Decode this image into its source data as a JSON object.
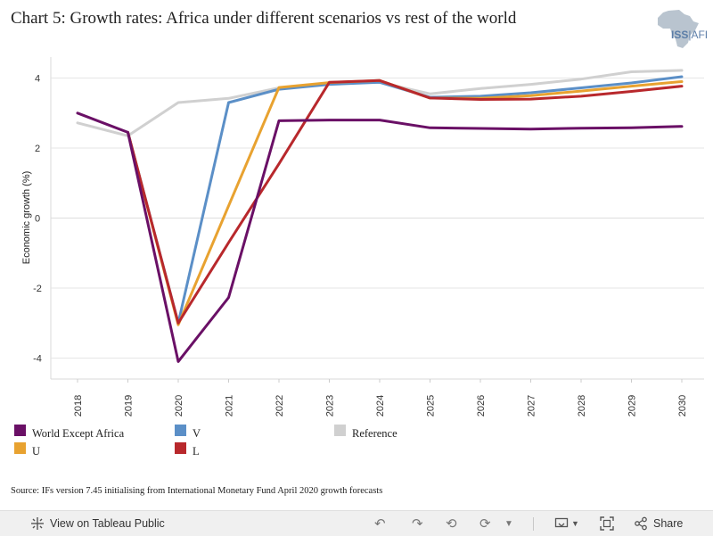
{
  "title": "Chart 5: Growth rates: Africa under different scenarios vs rest of the world",
  "logo": {
    "brand": "ISS",
    "suffix": "AFI"
  },
  "source": "Source: IFs version 7.45 initialising from International Monetary Fund April 2020 growth forecasts",
  "chart_data": {
    "type": "line",
    "ylabel": "Economic growth (%)",
    "xlabel": "",
    "ylim": [
      -4.6,
      4.6
    ],
    "yticks": [
      -4,
      -2,
      0,
      2,
      4
    ],
    "x": [
      "2018",
      "2019",
      "2020",
      "2021",
      "2022",
      "2023",
      "2024",
      "2025",
      "2026",
      "2027",
      "2028",
      "2029",
      "2030"
    ],
    "grid": true,
    "legend_position": "bottom",
    "series": [
      {
        "name": "Reference",
        "color": "#d0d0d0",
        "values": [
          2.72,
          2.35,
          3.3,
          3.42,
          3.72,
          3.85,
          3.88,
          3.55,
          3.7,
          3.82,
          3.97,
          4.18,
          4.22
        ]
      },
      {
        "name": "V",
        "color": "#5b8fc7",
        "values": [
          null,
          2.45,
          -3.0,
          3.3,
          3.68,
          3.82,
          3.88,
          3.45,
          3.48,
          3.58,
          3.72,
          3.86,
          4.04
        ]
      },
      {
        "name": "U",
        "color": "#e8a230",
        "values": [
          null,
          2.45,
          -3.05,
          0.35,
          3.73,
          3.87,
          3.93,
          3.43,
          3.42,
          3.5,
          3.63,
          3.77,
          3.9
        ]
      },
      {
        "name": "L",
        "color": "#b8282c",
        "values": [
          null,
          2.45,
          -3.0,
          -0.7,
          1.55,
          3.88,
          3.93,
          3.43,
          3.39,
          3.4,
          3.48,
          3.62,
          3.77
        ]
      },
      {
        "name": "World Except Africa",
        "color": "#6a1066",
        "values": [
          3.0,
          2.45,
          -4.1,
          -2.27,
          2.78,
          2.8,
          2.8,
          2.58,
          2.56,
          2.54,
          2.57,
          2.58,
          2.62
        ]
      }
    ]
  },
  "legend": [
    {
      "label": "World Except Africa",
      "color": "#6a1066"
    },
    {
      "label": "V",
      "color": "#5b8fc7"
    },
    {
      "label": "Reference",
      "color": "#d0d0d0"
    },
    {
      "label": "U",
      "color": "#e8a230"
    },
    {
      "label": "L",
      "color": "#b8282c"
    }
  ],
  "footer": {
    "view_label": "View on Tableau Public",
    "share_label": "Share"
  }
}
